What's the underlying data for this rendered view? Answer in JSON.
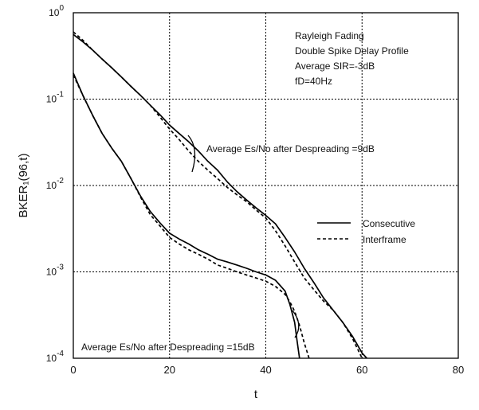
{
  "chart_data": {
    "type": "line",
    "xlabel": "t",
    "ylabel": "BKER₁(96,t)",
    "xlim": [
      0,
      80
    ],
    "ylim": [
      0.0001,
      1
    ],
    "y_scale": "log",
    "grid": true,
    "x_ticks": [
      {
        "value": 0,
        "label": "0"
      },
      {
        "value": 20,
        "label": "20"
      },
      {
        "value": 40,
        "label": "40"
      },
      {
        "value": 60,
        "label": "60"
      },
      {
        "value": 80,
        "label": "80"
      }
    ],
    "y_ticks": [
      {
        "value": 1,
        "base": "10",
        "exp": "0"
      },
      {
        "value": 0.1,
        "base": "10",
        "exp": "-1"
      },
      {
        "value": 0.01,
        "base": "10",
        "exp": "-2"
      },
      {
        "value": 0.001,
        "base": "10",
        "exp": "-3"
      },
      {
        "value": 0.0001,
        "base": "10",
        "exp": "-4"
      }
    ],
    "info_lines": [
      "Rayleigh Fading",
      "Double Spike Delay Profile",
      "Average SIR=-3dB",
      "fD=40Hz"
    ],
    "legend": {
      "placement": "right-middle",
      "entries": [
        {
          "label": "Consecutive",
          "style": "solid"
        },
        {
          "label": "Interframe",
          "style": "dashed"
        }
      ]
    },
    "annotations": [
      {
        "text": "Average Es/No after Despreading =9dB"
      },
      {
        "text": "Average Es/No after Despreading =15dB"
      }
    ],
    "series": [
      {
        "group": "9dB",
        "style": "solid",
        "points": [
          [
            0,
            0.56
          ],
          [
            2,
            0.46
          ],
          [
            4,
            0.37
          ],
          [
            6,
            0.29
          ],
          [
            8,
            0.23
          ],
          [
            10,
            0.18
          ],
          [
            12,
            0.14
          ],
          [
            14,
            0.11
          ],
          [
            16,
            0.085
          ],
          [
            18,
            0.066
          ],
          [
            20,
            0.05
          ],
          [
            22,
            0.04
          ],
          [
            24,
            0.032
          ],
          [
            26,
            0.025
          ],
          [
            28,
            0.019
          ],
          [
            30,
            0.015
          ],
          [
            32,
            0.011
          ],
          [
            34,
            0.0085
          ],
          [
            36,
            0.0068
          ],
          [
            38,
            0.0055
          ],
          [
            40,
            0.0045
          ],
          [
            42,
            0.0036
          ],
          [
            44,
            0.0025
          ],
          [
            46,
            0.0017
          ],
          [
            48,
            0.0011
          ],
          [
            50,
            0.00075
          ],
          [
            52,
            0.0005
          ],
          [
            54,
            0.00036
          ],
          [
            56,
            0.00026
          ],
          [
            58,
            0.00018
          ],
          [
            60,
            0.000115
          ],
          [
            61,
            0.0001
          ]
        ]
      },
      {
        "group": "9dB",
        "style": "dashed",
        "points": [
          [
            0,
            0.6
          ],
          [
            2,
            0.48
          ],
          [
            4,
            0.37
          ],
          [
            6,
            0.29
          ],
          [
            8,
            0.23
          ],
          [
            10,
            0.18
          ],
          [
            12,
            0.14
          ],
          [
            14,
            0.11
          ],
          [
            16,
            0.085
          ],
          [
            18,
            0.062
          ],
          [
            20,
            0.045
          ],
          [
            22,
            0.034
          ],
          [
            24,
            0.025
          ],
          [
            26,
            0.019
          ],
          [
            28,
            0.015
          ],
          [
            30,
            0.012
          ],
          [
            32,
            0.0095
          ],
          [
            34,
            0.0078
          ],
          [
            36,
            0.0065
          ],
          [
            38,
            0.0052
          ],
          [
            40,
            0.0042
          ],
          [
            42,
            0.003
          ],
          [
            44,
            0.002
          ],
          [
            46,
            0.0013
          ],
          [
            48,
            0.00085
          ],
          [
            50,
            0.00062
          ],
          [
            52,
            0.00046
          ],
          [
            54,
            0.00036
          ],
          [
            56,
            0.00026
          ],
          [
            58,
            0.00017
          ],
          [
            60,
            0.0001
          ]
        ]
      },
      {
        "group": "15dB",
        "style": "solid",
        "points": [
          [
            0,
            0.2
          ],
          [
            2,
            0.11
          ],
          [
            4,
            0.065
          ],
          [
            6,
            0.04
          ],
          [
            8,
            0.027
          ],
          [
            10,
            0.019
          ],
          [
            12,
            0.012
          ],
          [
            14,
            0.0075
          ],
          [
            16,
            0.005
          ],
          [
            18,
            0.0037
          ],
          [
            20,
            0.0028
          ],
          [
            22,
            0.0024
          ],
          [
            24,
            0.0021
          ],
          [
            26,
            0.0018
          ],
          [
            28,
            0.0016
          ],
          [
            30,
            0.0014
          ],
          [
            32,
            0.0013
          ],
          [
            34,
            0.0012
          ],
          [
            36,
            0.0011
          ],
          [
            38,
            0.001
          ],
          [
            40,
            0.00092
          ],
          [
            42,
            0.0008
          ],
          [
            44,
            0.0006
          ],
          [
            45,
            0.00042
          ],
          [
            46,
            0.00026
          ],
          [
            46.5,
            0.00016
          ],
          [
            47,
            0.0001
          ]
        ]
      },
      {
        "group": "15dB",
        "style": "dashed",
        "points": [
          [
            0,
            0.19
          ],
          [
            2,
            0.11
          ],
          [
            4,
            0.065
          ],
          [
            6,
            0.04
          ],
          [
            8,
            0.027
          ],
          [
            10,
            0.019
          ],
          [
            12,
            0.012
          ],
          [
            14,
            0.0073
          ],
          [
            16,
            0.0046
          ],
          [
            18,
            0.0034
          ],
          [
            20,
            0.0025
          ],
          [
            22,
            0.0021
          ],
          [
            24,
            0.0018
          ],
          [
            26,
            0.0016
          ],
          [
            28,
            0.0014
          ],
          [
            30,
            0.0012
          ],
          [
            32,
            0.0011
          ],
          [
            34,
            0.001
          ],
          [
            36,
            0.00092
          ],
          [
            38,
            0.00085
          ],
          [
            40,
            0.00078
          ],
          [
            42,
            0.00068
          ],
          [
            44,
            0.00055
          ],
          [
            45,
            0.00045
          ],
          [
            46,
            0.00035
          ],
          [
            47,
            0.00024
          ],
          [
            48,
            0.00015
          ],
          [
            49,
            0.0001
          ]
        ]
      }
    ]
  }
}
